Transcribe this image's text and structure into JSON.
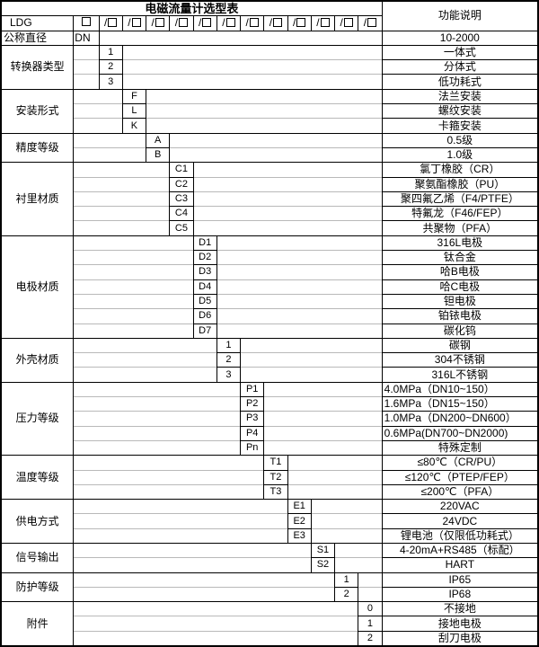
{
  "app": {
    "title": "电磁流量计选型表",
    "right_header": "功能说明",
    "model_prefix": "LDG",
    "box_icon": "empty-checkbox",
    "code_box_count": 12
  },
  "sections": [
    {
      "id": "nominal-diameter",
      "label": "公称直径",
      "left_align": true,
      "codes": [
        {
          "code": "DN",
          "desc": "10-2000"
        }
      ]
    },
    {
      "id": "converter-type",
      "label": "转换器类型",
      "codes": [
        {
          "code": "1",
          "desc": "一体式"
        },
        {
          "code": "2",
          "desc": "分体式"
        },
        {
          "code": "3",
          "desc": "低功耗式"
        }
      ]
    },
    {
      "id": "install-type",
      "label": "安装形式",
      "codes": [
        {
          "code": "F",
          "desc": "法兰安装"
        },
        {
          "code": "L",
          "desc": "螺纹安装"
        },
        {
          "code": "K",
          "desc": "卡箍安装"
        }
      ]
    },
    {
      "id": "accuracy-class",
      "label": "精度等级",
      "codes": [
        {
          "code": "A",
          "desc": "0.5级"
        },
        {
          "code": "B",
          "desc": "1.0级"
        }
      ]
    },
    {
      "id": "liner-material",
      "label": "衬里材质",
      "codes": [
        {
          "code": "C1",
          "desc": "氯丁橡胶（CR）"
        },
        {
          "code": "C2",
          "desc": "聚氨酯橡胶（PU）"
        },
        {
          "code": "C3",
          "desc": "聚四氟乙烯（F4/PTFE）"
        },
        {
          "code": "C4",
          "desc": "特氟龙（F46/FEP）"
        },
        {
          "code": "C5",
          "desc": "共聚物（PFA）"
        }
      ]
    },
    {
      "id": "electrode-material",
      "label": "电极材质",
      "codes": [
        {
          "code": "D1",
          "desc": "316L电极"
        },
        {
          "code": "D2",
          "desc": "钛合金"
        },
        {
          "code": "D3",
          "desc": "哈B电极"
        },
        {
          "code": "D4",
          "desc": "哈C电极"
        },
        {
          "code": "D5",
          "desc": "钽电极"
        },
        {
          "code": "D6",
          "desc": "铂铱电极"
        },
        {
          "code": "D7",
          "desc": "碳化钨"
        }
      ]
    },
    {
      "id": "housing-material",
      "label": "外壳材质",
      "codes": [
        {
          "code": "1",
          "desc": "碳钢"
        },
        {
          "code": "2",
          "desc": "304不锈钢"
        },
        {
          "code": "3",
          "desc": "316L不锈钢"
        }
      ]
    },
    {
      "id": "pressure-class",
      "label": "压力等级",
      "codes": [
        {
          "code": "P1",
          "desc": "4.0MPa（DN10~150）",
          "align": "left"
        },
        {
          "code": "P2",
          "desc": "1.6MPa（DN15~150）",
          "align": "left"
        },
        {
          "code": "P3",
          "desc": "1.0MPa（DN200~DN600）",
          "align": "left"
        },
        {
          "code": "P4",
          "desc": "0.6MPa(DN700~DN2000)",
          "align": "left"
        },
        {
          "code": "Pn",
          "desc": "特殊定制"
        }
      ]
    },
    {
      "id": "temperature-class",
      "label": "温度等级",
      "codes": [
        {
          "code": "T1",
          "desc": "≤80℃（CR/PU）"
        },
        {
          "code": "T2",
          "desc": "≤120℃（PTEP/FEP）"
        },
        {
          "code": "T3",
          "desc": "≤200℃（PFA）"
        }
      ]
    },
    {
      "id": "power-supply",
      "label": "供电方式",
      "codes": [
        {
          "code": "E1",
          "desc": "220VAC"
        },
        {
          "code": "E2",
          "desc": "24VDC"
        },
        {
          "code": "E3",
          "desc": "锂电池（仅限低功耗式）"
        }
      ]
    },
    {
      "id": "signal-output",
      "label": "信号输出",
      "codes": [
        {
          "code": "S1",
          "desc": "4-20mA+RS485（标配）"
        },
        {
          "code": "S2",
          "desc": "HART"
        }
      ]
    },
    {
      "id": "protection-class",
      "label": "防护等级",
      "codes": [
        {
          "code": "1",
          "desc": "IP65"
        },
        {
          "code": "2",
          "desc": "IP68"
        }
      ]
    },
    {
      "id": "accessories",
      "label": "附件",
      "codes": [
        {
          "code": "0",
          "desc": "不接地"
        },
        {
          "code": "1",
          "desc": "接地电极"
        },
        {
          "code": "2",
          "desc": "刮刀电极"
        }
      ]
    }
  ]
}
